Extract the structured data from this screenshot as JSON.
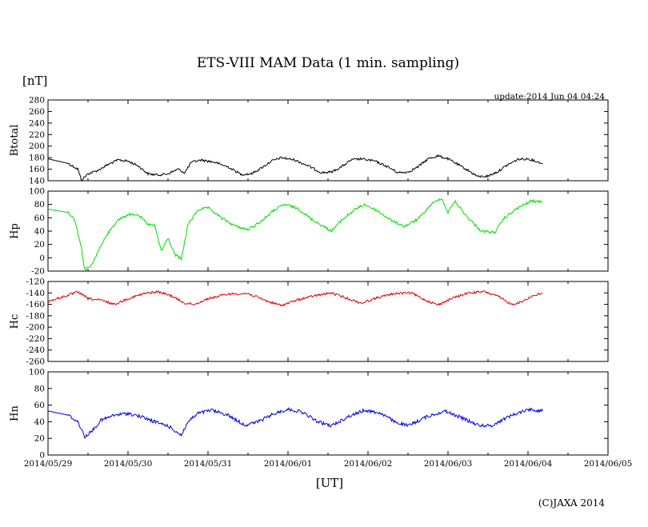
{
  "header": {
    "title": "ETS-VIII MAM Data (1 min. sampling)",
    "unit_label": "[nT]",
    "update": "update:2014 Jun 04 04:24"
  },
  "footer": {
    "xlabel": "[UT]",
    "copyright": "(C)JAXA 2014"
  },
  "chart_data": {
    "type": "line",
    "x_ticks": [
      "2014/05/29",
      "2014/05/30",
      "2014/05/31",
      "2014/06/01",
      "2014/06/02",
      "2014/06/03",
      "2014/06/04",
      "2014/06/05"
    ],
    "xlim": [
      "2014/05/29 00:00",
      "2014/06/05 00:00"
    ],
    "grid": false,
    "panels": [
      {
        "name": "Btotal",
        "ylabel": "Btotal",
        "color": "#000000",
        "ylim": [
          140,
          280
        ],
        "yticks": [
          "280",
          "260",
          "240",
          "220",
          "200",
          "180",
          "160",
          "140"
        ],
        "noise": 2,
        "points": [
          [
            "2014/05/29 00:00",
            178
          ],
          [
            "2014/05/29 06:00",
            170
          ],
          [
            "2014/05/29 09:00",
            160
          ],
          [
            "2014/05/29 10:00",
            141
          ],
          [
            "2014/05/29 12:00",
            152
          ],
          [
            "2014/05/29 15:00",
            158
          ],
          [
            "2014/05/29 18:00",
            168
          ],
          [
            "2014/05/29 21:00",
            176
          ],
          [
            "2014/05/30 00:00",
            174
          ],
          [
            "2014/05/30 03:00",
            166
          ],
          [
            "2014/05/30 06:00",
            152
          ],
          [
            "2014/05/30 09:00",
            150
          ],
          [
            "2014/05/30 12:00",
            152
          ],
          [
            "2014/05/30 15:00",
            160
          ],
          [
            "2014/05/30 17:00",
            154
          ],
          [
            "2014/05/30 19:00",
            172
          ],
          [
            "2014/05/30 22:00",
            176
          ],
          [
            "2014/05/31 02:00",
            172
          ],
          [
            "2014/05/31 06:00",
            164
          ],
          [
            "2014/05/31 10:00",
            151
          ],
          [
            "2014/05/31 13:00",
            152
          ],
          [
            "2014/05/31 16:00",
            162
          ],
          [
            "2014/05/31 19:00",
            174
          ],
          [
            "2014/05/31 22:00",
            180
          ],
          [
            "2014/06/01 02:00",
            176
          ],
          [
            "2014/06/01 06:00",
            166
          ],
          [
            "2014/06/01 10:00",
            154
          ],
          [
            "2014/06/01 13:00",
            155
          ],
          [
            "2014/06/01 16:00",
            164
          ],
          [
            "2014/06/01 19:00",
            176
          ],
          [
            "2014/06/01 22:00",
            178
          ],
          [
            "2014/06/02 02:00",
            174
          ],
          [
            "2014/06/02 06:00",
            164
          ],
          [
            "2014/06/02 09:00",
            154
          ],
          [
            "2014/06/02 12:00",
            155
          ],
          [
            "2014/06/02 15:00",
            164
          ],
          [
            "2014/06/02 18:00",
            178
          ],
          [
            "2014/06/02 21:00",
            183
          ],
          [
            "2014/06/03 00:00",
            178
          ],
          [
            "2014/06/03 03:00",
            168
          ],
          [
            "2014/06/03 06:00",
            158
          ],
          [
            "2014/06/03 09:00",
            147
          ],
          [
            "2014/06/03 12:00",
            148
          ],
          [
            "2014/06/03 15:00",
            156
          ],
          [
            "2014/06/03 18:00",
            168
          ],
          [
            "2014/06/03 21:00",
            177
          ],
          [
            "2014/06/04 00:00",
            178
          ],
          [
            "2014/06/04 04:24",
            170
          ]
        ]
      },
      {
        "name": "Hp",
        "ylabel": "Hp",
        "color": "#00dd00",
        "ylim": [
          -20,
          100
        ],
        "yticks": [
          "100",
          "80",
          "60",
          "40",
          "20",
          "0",
          "-20"
        ],
        "noise": 2,
        "points": [
          [
            "2014/05/29 00:00",
            73
          ],
          [
            "2014/05/29 06:00",
            68
          ],
          [
            "2014/05/29 08:00",
            58
          ],
          [
            "2014/05/29 10:00",
            15
          ],
          [
            "2014/05/29 11:00",
            -18
          ],
          [
            "2014/05/29 13:00",
            -12
          ],
          [
            "2014/05/29 16:00",
            20
          ],
          [
            "2014/05/29 19:00",
            45
          ],
          [
            "2014/05/29 22:00",
            60
          ],
          [
            "2014/05/30 01:00",
            66
          ],
          [
            "2014/05/30 03:00",
            65
          ],
          [
            "2014/05/30 06:00",
            50
          ],
          [
            "2014/05/30 08:00",
            48
          ],
          [
            "2014/05/30 10:00",
            10
          ],
          [
            "2014/05/30 12:00",
            30
          ],
          [
            "2014/05/30 14:00",
            5
          ],
          [
            "2014/05/30 16:00",
            -2
          ],
          [
            "2014/05/30 18:00",
            50
          ],
          [
            "2014/05/30 21:00",
            72
          ],
          [
            "2014/05/31 00:00",
            75
          ],
          [
            "2014/05/31 04:00",
            60
          ],
          [
            "2014/05/31 08:00",
            48
          ],
          [
            "2014/05/31 12:00",
            42
          ],
          [
            "2014/05/31 16:00",
            55
          ],
          [
            "2014/05/31 20:00",
            72
          ],
          [
            "2014/05/31 23:00",
            80
          ],
          [
            "2014/06/01 03:00",
            74
          ],
          [
            "2014/06/01 07:00",
            58
          ],
          [
            "2014/06/01 11:00",
            46
          ],
          [
            "2014/06/01 13:00",
            40
          ],
          [
            "2014/06/01 16:00",
            56
          ],
          [
            "2014/06/01 20:00",
            72
          ],
          [
            "2014/06/01 23:00",
            80
          ],
          [
            "2014/06/02 03:00",
            70
          ],
          [
            "2014/06/02 07:00",
            56
          ],
          [
            "2014/06/02 11:00",
            47
          ],
          [
            "2014/06/02 15:00",
            58
          ],
          [
            "2014/06/02 19:00",
            80
          ],
          [
            "2014/06/02 22:00",
            90
          ],
          [
            "2014/06/03 00:00",
            68
          ],
          [
            "2014/06/03 02:00",
            85
          ],
          [
            "2014/06/03 06:00",
            60
          ],
          [
            "2014/06/03 10:00",
            40
          ],
          [
            "2014/06/03 14:00",
            38
          ],
          [
            "2014/06/03 17:00",
            60
          ],
          [
            "2014/06/03 21:00",
            75
          ],
          [
            "2014/06/04 01:00",
            85
          ],
          [
            "2014/06/04 04:24",
            84
          ]
        ]
      },
      {
        "name": "Hc",
        "ylabel": "Hc",
        "color": "#dd0000",
        "ylim": [
          -260,
          -120
        ],
        "yticks": [
          "-120",
          "-140",
          "-160",
          "-180",
          "-200",
          "-220",
          "-240",
          "-260"
        ],
        "noise": 2,
        "points": [
          [
            "2014/05/29 00:00",
            -155
          ],
          [
            "2014/05/29 05:00",
            -146
          ],
          [
            "2014/05/29 09:00",
            -138
          ],
          [
            "2014/05/29 12:00",
            -150
          ],
          [
            "2014/05/29 16:00",
            -153
          ],
          [
            "2014/05/29 20:00",
            -160
          ],
          [
            "2014/05/30 00:00",
            -150
          ],
          [
            "2014/05/30 05:00",
            -141
          ],
          [
            "2014/05/30 09:00",
            -138
          ],
          [
            "2014/05/30 13:00",
            -145
          ],
          [
            "2014/05/30 17:00",
            -158
          ],
          [
            "2014/05/30 20:00",
            -160
          ],
          [
            "2014/05/31 00:00",
            -150
          ],
          [
            "2014/05/31 06:00",
            -142
          ],
          [
            "2014/05/31 12:00",
            -141
          ],
          [
            "2014/05/31 18:00",
            -155
          ],
          [
            "2014/05/31 22:00",
            -162
          ],
          [
            "2014/06/01 03:00",
            -152
          ],
          [
            "2014/06/01 08:00",
            -145
          ],
          [
            "2014/06/01 13:00",
            -140
          ],
          [
            "2014/06/01 18:00",
            -150
          ],
          [
            "2014/06/01 22:00",
            -158
          ],
          [
            "2014/06/02 03:00",
            -148
          ],
          [
            "2014/06/02 08:00",
            -141
          ],
          [
            "2014/06/02 13:00",
            -140
          ],
          [
            "2014/06/02 17:00",
            -152
          ],
          [
            "2014/06/02 21:00",
            -161
          ],
          [
            "2014/06/03 01:00",
            -150
          ],
          [
            "2014/06/03 06:00",
            -140
          ],
          [
            "2014/06/03 11:00",
            -138
          ],
          [
            "2014/06/03 15:00",
            -146
          ],
          [
            "2014/06/03 19:00",
            -160
          ],
          [
            "2014/06/03 22:00",
            -156
          ],
          [
            "2014/06/04 01:00",
            -146
          ],
          [
            "2014/06/04 04:24",
            -140
          ]
        ]
      },
      {
        "name": "Hn",
        "ylabel": "Hn",
        "color": "#0000dd",
        "ylim": [
          0,
          100
        ],
        "yticks": [
          "100",
          "80",
          "60",
          "40",
          "20",
          "0"
        ],
        "noise": 2,
        "points": [
          [
            "2014/05/29 00:00",
            53
          ],
          [
            "2014/05/29 06:00",
            48
          ],
          [
            "2014/05/29 09:00",
            40
          ],
          [
            "2014/05/29 11:00",
            22
          ],
          [
            "2014/05/29 13:00",
            28
          ],
          [
            "2014/05/29 16:00",
            42
          ],
          [
            "2014/05/29 20:00",
            48
          ],
          [
            "2014/05/30 00:00",
            50
          ],
          [
            "2014/05/30 04:00",
            46
          ],
          [
            "2014/05/30 08:00",
            40
          ],
          [
            "2014/05/30 12:00",
            35
          ],
          [
            "2014/05/30 16:00",
            24
          ],
          [
            "2014/05/30 18:00",
            40
          ],
          [
            "2014/05/30 21:00",
            50
          ],
          [
            "2014/05/31 01:00",
            54
          ],
          [
            "2014/05/31 06:00",
            48
          ],
          [
            "2014/05/31 11:00",
            36
          ],
          [
            "2014/05/31 15:00",
            40
          ],
          [
            "2014/05/31 20:00",
            50
          ],
          [
            "2014/06/01 00:00",
            55
          ],
          [
            "2014/06/01 04:00",
            52
          ],
          [
            "2014/06/01 09:00",
            40
          ],
          [
            "2014/06/01 13:00",
            35
          ],
          [
            "2014/06/01 18:00",
            46
          ],
          [
            "2014/06/01 23:00",
            54
          ],
          [
            "2014/06/02 04:00",
            50
          ],
          [
            "2014/06/02 08:00",
            40
          ],
          [
            "2014/06/02 12:00",
            35
          ],
          [
            "2014/06/02 17:00",
            45
          ],
          [
            "2014/06/02 23:00",
            53
          ],
          [
            "2014/06/03 04:00",
            45
          ],
          [
            "2014/06/03 09:00",
            36
          ],
          [
            "2014/06/03 13:00",
            35
          ],
          [
            "2014/06/03 18:00",
            46
          ],
          [
            "2014/06/04 00:00",
            55
          ],
          [
            "2014/06/04 04:24",
            53
          ]
        ]
      }
    ]
  }
}
